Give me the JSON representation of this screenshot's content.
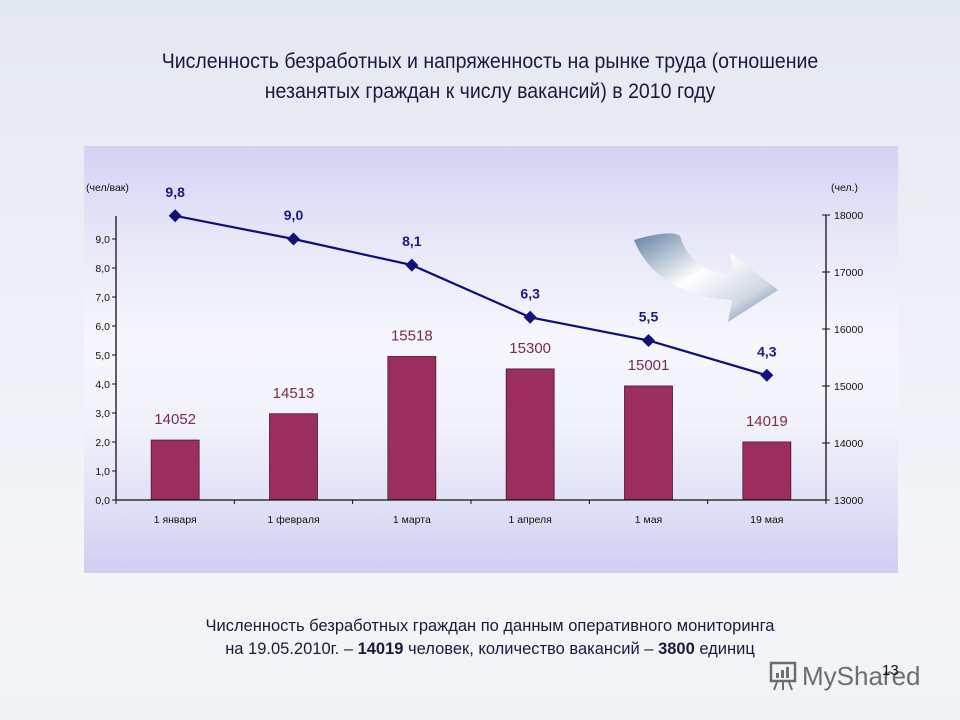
{
  "slide": {
    "title_line1": "Численность безработных и напряженность на рынке труда (отношение",
    "title_line2": "незанятых граждан к числу вакансий) в 2010 году",
    "caption_line1": "Численность безработных граждан по данным оперативного мониторинга",
    "caption_line2_pre": "на 19.05.2010г. – ",
    "caption_unemployed": "14019",
    "caption_line2_mid": " человек, количество вакансий – ",
    "caption_vacancies": "3800",
    "caption_line2_post": " единиц",
    "page_number": "13",
    "watermark": "MyShared"
  },
  "colors": {
    "bar_fill": "#9b2d5f",
    "bar_label": "#7a2b4f",
    "line": "#0f0f7a",
    "marker": "#12127a",
    "axis": "#111111"
  },
  "chart_data": {
    "type": "bar",
    "title": "Численность безработных и напряженность на рынке труда (отношение незанятых граждан к числу вакансий) в 2010 году",
    "categories": [
      "1 января",
      "1 февраля",
      "1 марта",
      "1 апреля",
      "1 мая",
      "19 мая"
    ],
    "series": [
      {
        "name": "Численность безработных (чел.)",
        "type": "bar",
        "axis": "right",
        "values": [
          14052,
          14513,
          15518,
          15300,
          15001,
          14019
        ],
        "labels": [
          "14052",
          "14513",
          "15518",
          "15300",
          "15001",
          "14019"
        ]
      },
      {
        "name": "Напряженность (чел/вак)",
        "type": "line",
        "axis": "left",
        "values": [
          9.8,
          9.0,
          8.1,
          6.3,
          5.5,
          4.3
        ],
        "labels": [
          "9,8",
          "9,0",
          "8,1",
          "6,3",
          "5,5",
          "4,3"
        ]
      }
    ],
    "left_axis": {
      "label": "(чел/вак)",
      "ylim": [
        0,
        9.8
      ],
      "ticks": [
        "0,0",
        "1,0",
        "2,0",
        "3,0",
        "4,0",
        "5,0",
        "6,0",
        "7,0",
        "8,0",
        "9,0"
      ]
    },
    "right_axis": {
      "label": "(чел.)",
      "ylim": [
        13000,
        18000
      ],
      "ticks": [
        "13000",
        "14000",
        "15000",
        "16000",
        "17000",
        "18000"
      ]
    },
    "xlabel": "",
    "grid": false,
    "legend": "none",
    "annotations": [
      "decorative downward-curving arrow near upper right"
    ]
  }
}
